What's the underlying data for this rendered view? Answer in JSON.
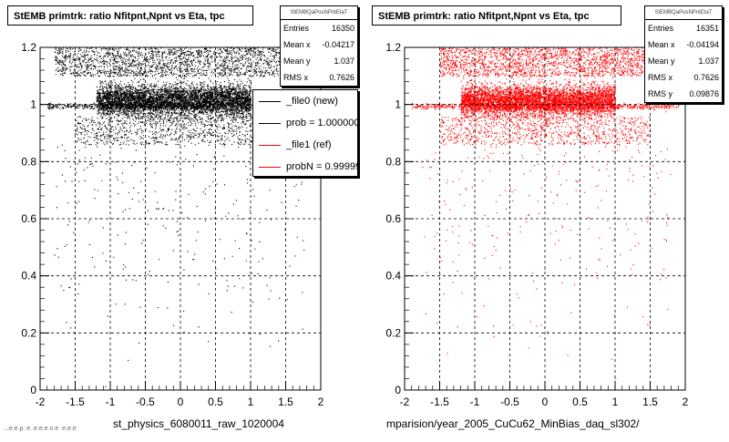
{
  "panels": [
    {
      "title": "StEMB primtrk: ratio Nfitpnt,Npnt vs Eta, tpc",
      "xlabel": "st_physics_6080011_raw_1020004",
      "stats": {
        "header": "StEMBQaPosNPntEtaT",
        "rows": [
          {
            "label": "Entries",
            "value": "16350"
          },
          {
            "label": "Mean x",
            "value": "-0.04217"
          },
          {
            "label": "Mean y",
            "value": "1.037"
          },
          {
            "label": "RMS x",
            "value": "0.7626"
          }
        ]
      },
      "legend": [
        {
          "label": "_file0 (new)",
          "color": "#000000"
        },
        {
          "label": "prob = 1.000000",
          "color": "#000000"
        },
        {
          "label": "_file1 (ref)",
          "color": "#ff0000"
        },
        {
          "label": "probN = 0.999999",
          "color": "#ff0000"
        }
      ]
    },
    {
      "title": "StEMB primtrk: ratio Nfitpnt,Npnt vs Eta, tpc",
      "xlabel": "mparision/year_2005_CuCu62_MinBias_daq_sl302/",
      "stats": {
        "header": "StEMBQaPosNPntEtaT",
        "rows": [
          {
            "label": "Entries",
            "value": "16351"
          },
          {
            "label": "Mean x",
            "value": "-0.04194"
          },
          {
            "label": "Mean y",
            "value": "1.037"
          },
          {
            "label": "RMS x",
            "value": "0.7626"
          },
          {
            "label": "RMS y",
            "value": "0.09876"
          }
        ]
      }
    }
  ],
  "footer_text": "...e.e.p: e .e.e.e.n.e .e.e.e",
  "chart_data": [
    {
      "type": "scatter",
      "title": "StEMB primtrk: ratio Nfitpnt,Npnt vs Eta, tpc",
      "xlabel": "st_physics_6080011_raw_1020004",
      "ylabel": "",
      "xlim": [
        -2,
        2
      ],
      "ylim": [
        0,
        1.2
      ],
      "x_ticks": [
        "-2",
        "-1.5",
        "-1",
        "-0.5",
        "0",
        "0.5",
        "1",
        "1.5",
        "2"
      ],
      "y_ticks": [
        "0",
        "0.2",
        "0.4",
        "0.6",
        "0.8",
        "1",
        "1.2"
      ],
      "grid": true,
      "series": [
        {
          "name": "_file0 (new)",
          "color": "#000000"
        }
      ],
      "distribution": {
        "entries": 16350,
        "mean_x": -0.04217,
        "mean_y": 1.037,
        "rms_x": 0.7626,
        "dense_band": {
          "x_range": [
            -1.2,
            1.0
          ],
          "y_range": [
            0.95,
            1.08
          ]
        },
        "secondary_band": {
          "x_range": [
            -1.8,
            1.5
          ],
          "y_range": [
            1.1,
            1.2
          ]
        },
        "sparse_tail": {
          "x_range": [
            -1.8,
            1.8
          ],
          "y_range": [
            0.0,
            0.95
          ]
        }
      },
      "legend_position": "top-right"
    },
    {
      "type": "scatter",
      "title": "StEMB primtrk: ratio Nfitpnt,Npnt vs Eta, tpc",
      "xlabel": "mparision/year_2005_CuCu62_MinBias_daq_sl302/",
      "ylabel": "",
      "xlim": [
        -2,
        2
      ],
      "ylim": [
        0,
        1.2
      ],
      "x_ticks": [
        "-2",
        "-1.5",
        "-1",
        "-0.5",
        "0",
        "0.5",
        "1",
        "1.5",
        "2"
      ],
      "y_ticks": [
        "0",
        "0.2",
        "0.4",
        "0.6",
        "0.8",
        "1",
        "1.2"
      ],
      "grid": true,
      "series": [
        {
          "name": "_file1 (ref)",
          "color": "#ff0000"
        }
      ],
      "distribution": {
        "entries": 16351,
        "mean_x": -0.04194,
        "mean_y": 1.037,
        "rms_x": 0.7626,
        "rms_y": 0.09876,
        "dense_band": {
          "x_range": [
            -1.2,
            1.0
          ],
          "y_range": [
            0.95,
            1.08
          ]
        },
        "secondary_band": {
          "x_range": [
            -1.5,
            1.5
          ],
          "y_range": [
            1.1,
            1.2
          ]
        },
        "sparse_tail": {
          "x_range": [
            -1.8,
            1.8
          ],
          "y_range": [
            0.0,
            0.95
          ]
        }
      }
    }
  ]
}
